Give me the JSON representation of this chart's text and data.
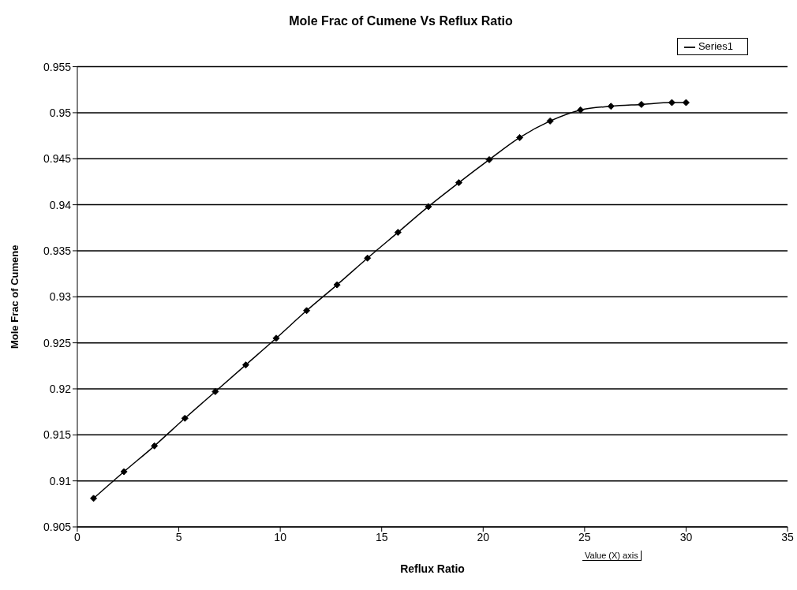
{
  "chart_data": {
    "type": "line",
    "title": "Mole Frac of Cumene Vs Reflux Ratio",
    "xlabel": "Reflux Ratio",
    "ylabel": "Mole Frac of Cumene",
    "x": [
      0.8,
      2.3,
      3.8,
      5.3,
      6.8,
      8.3,
      9.8,
      11.3,
      12.8,
      14.3,
      15.8,
      17.3,
      18.8,
      20.3,
      21.8,
      23.3,
      24.8,
      26.3,
      27.8,
      29.3,
      30
    ],
    "series": [
      {
        "name": "Series1",
        "color": "#000000",
        "values": [
          0.9081,
          0.911,
          0.9138,
          0.9168,
          0.9197,
          0.9226,
          0.9255,
          0.9285,
          0.9313,
          0.9342,
          0.937,
          0.9398,
          0.9424,
          0.9449,
          0.9473,
          0.9491,
          0.9503,
          0.9507,
          0.9509,
          0.9511,
          0.9511
        ]
      }
    ],
    "xlim": [
      0,
      35
    ],
    "xticks": [
      0,
      5,
      10,
      15,
      20,
      25,
      30,
      35
    ],
    "ylim": [
      0.905,
      0.955
    ],
    "yticks": [
      0.905,
      0.91,
      0.915,
      0.92,
      0.925,
      0.93,
      0.935,
      0.94,
      0.945,
      0.95,
      0.955
    ],
    "grid": "y",
    "legend": "top right",
    "marker": "diamond",
    "line_style": "solid",
    "annotations": [
      "Value (X) axis"
    ]
  }
}
